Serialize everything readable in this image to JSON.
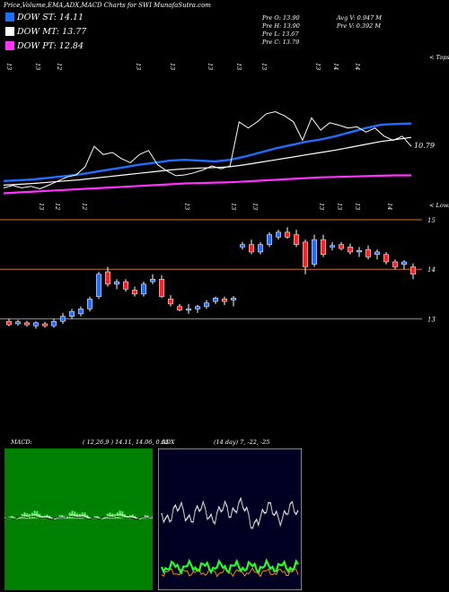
{
  "title": "Price,Volume,EMA,ADX,MACD Charts for SWI MunafaSutra.com",
  "legend": [
    {
      "label": "DOW ST: 14.11",
      "color": "#1f6fff"
    },
    {
      "label": "DOW MT: 13.77",
      "color": "#ffffff"
    },
    {
      "label": "DOW PT: 12.84",
      "color": "#ff33ff"
    }
  ],
  "stats_left": [
    "Pre   O: 13.90",
    "Pre   H: 13.90",
    "Pre   L: 13.67",
    "Pre   C: 13.79"
  ],
  "stats_right": [
    "Avg V: 0.947  M",
    "Pre   V: 0.392  M"
  ],
  "upper_labels": {
    "tops": "< Tops",
    "lows": "< Lows",
    "last_value": "10.79"
  },
  "tops_marks": [
    "13",
    "13",
    "12",
    "13",
    "13",
    "13",
    "13",
    "13",
    "13",
    "14",
    "14"
  ],
  "lows_marks": [
    "13",
    "12",
    "12",
    "13",
    "13",
    "13",
    "13",
    "13",
    "13",
    "14"
  ],
  "price_axis": [
    "15",
    "14",
    "13"
  ],
  "macd_header": "MACD:",
  "macd_params": "( 12,26,9 ) 14.11,  14.06,  0.05",
  "adx_header": "ADX",
  "adx_params": "(14  day) 7,  -22,  -25",
  "colors": {
    "up": "#1f6fff",
    "down": "#ff2222",
    "gridline": "#c8762c",
    "macd_bg": "#008000",
    "adx_bg": "#000022"
  },
  "chart_data": [
    {
      "type": "line",
      "title": "EMA overlay",
      "series": [
        {
          "name": "DOW ST",
          "color": "#1f6fff",
          "values": [
            12.7,
            12.72,
            12.74,
            12.78,
            12.82,
            12.86,
            12.92,
            12.98,
            13.04,
            13.1,
            13.15,
            13.2,
            13.22,
            13.2,
            13.18,
            13.22,
            13.3,
            13.4,
            13.5,
            13.58,
            13.66,
            13.72,
            13.8,
            13.9,
            14.0,
            14.08,
            14.1,
            14.11
          ]
        },
        {
          "name": "DOW MT",
          "color": "#ffffff",
          "values": [
            12.6,
            12.62,
            12.64,
            12.67,
            12.7,
            12.73,
            12.77,
            12.81,
            12.85,
            12.89,
            12.93,
            12.97,
            13.0,
            13.02,
            13.03,
            13.05,
            13.1,
            13.16,
            13.22,
            13.28,
            13.34,
            13.4,
            13.46,
            13.53,
            13.6,
            13.67,
            13.72,
            13.77
          ]
        },
        {
          "name": "DOW PT",
          "color": "#ff33ff",
          "values": [
            12.4,
            12.42,
            12.44,
            12.46,
            12.48,
            12.5,
            12.52,
            12.54,
            12.56,
            12.58,
            12.6,
            12.62,
            12.64,
            12.65,
            12.66,
            12.67,
            12.69,
            12.71,
            12.73,
            12.75,
            12.77,
            12.79,
            12.8,
            12.81,
            12.82,
            12.83,
            12.84,
            12.84
          ]
        }
      ]
    },
    {
      "type": "candlestick",
      "title": "Price",
      "ylim": [
        12.7,
        15.2
      ],
      "candles": [
        [
          12.95,
          13.0,
          12.85,
          12.88
        ],
        [
          12.9,
          12.98,
          12.86,
          12.94
        ],
        [
          12.92,
          12.96,
          12.84,
          12.88
        ],
        [
          12.86,
          12.95,
          12.8,
          12.92
        ],
        [
          12.9,
          12.94,
          12.82,
          12.86
        ],
        [
          12.86,
          13.0,
          12.82,
          12.95
        ],
        [
          12.95,
          13.12,
          12.9,
          13.05
        ],
        [
          13.05,
          13.2,
          13.0,
          13.15
        ],
        [
          13.1,
          13.25,
          13.05,
          13.2
        ],
        [
          13.2,
          13.45,
          13.15,
          13.4
        ],
        [
          13.45,
          13.95,
          13.4,
          13.9
        ],
        [
          13.95,
          14.05,
          13.65,
          13.7
        ],
        [
          13.7,
          13.8,
          13.6,
          13.75
        ],
        [
          13.75,
          13.8,
          13.55,
          13.6
        ],
        [
          13.58,
          13.65,
          13.45,
          13.5
        ],
        [
          13.5,
          13.75,
          13.45,
          13.7
        ],
        [
          13.75,
          13.9,
          13.7,
          13.8
        ],
        [
          13.8,
          13.88,
          13.42,
          13.45
        ],
        [
          13.4,
          13.48,
          13.25,
          13.3
        ],
        [
          13.25,
          13.3,
          13.15,
          13.18
        ],
        [
          13.2,
          13.3,
          13.1,
          13.2
        ],
        [
          13.2,
          13.28,
          13.12,
          13.25
        ],
        [
          13.25,
          13.38,
          13.2,
          13.32
        ],
        [
          13.35,
          13.45,
          13.3,
          13.42
        ],
        [
          13.4,
          13.45,
          13.28,
          13.35
        ],
        [
          13.38,
          13.46,
          13.25,
          13.42
        ],
        [
          14.45,
          14.55,
          14.4,
          14.5
        ],
        [
          14.5,
          14.6,
          14.3,
          14.35
        ],
        [
          14.35,
          14.55,
          14.3,
          14.5
        ],
        [
          14.5,
          14.75,
          14.45,
          14.7
        ],
        [
          14.65,
          14.8,
          14.6,
          14.75
        ],
        [
          14.75,
          14.85,
          14.62,
          14.65
        ],
        [
          14.7,
          14.8,
          14.45,
          14.5
        ],
        [
          14.55,
          14.6,
          13.9,
          14.05
        ],
        [
          14.1,
          14.7,
          14.05,
          14.6
        ],
        [
          14.6,
          14.7,
          14.25,
          14.3
        ],
        [
          14.45,
          14.55,
          14.38,
          14.48
        ],
        [
          14.5,
          14.55,
          14.38,
          14.42
        ],
        [
          14.45,
          14.52,
          14.3,
          14.35
        ],
        [
          14.35,
          14.45,
          14.25,
          14.38
        ],
        [
          14.4,
          14.48,
          14.2,
          14.25
        ],
        [
          14.3,
          14.4,
          14.2,
          14.35
        ],
        [
          14.3,
          14.35,
          14.1,
          14.15
        ],
        [
          14.15,
          14.2,
          14.0,
          14.05
        ],
        [
          14.1,
          14.18,
          14.0,
          14.15
        ],
        [
          14.05,
          14.12,
          13.8,
          13.9
        ]
      ]
    },
    {
      "type": "line",
      "title": "MACD",
      "params": [
        12,
        26,
        9
      ],
      "values": [
        14.11,
        14.06,
        0.05
      ]
    },
    {
      "type": "line",
      "title": "ADX",
      "period": 14,
      "values": [
        7,
        -22,
        -25
      ]
    }
  ]
}
